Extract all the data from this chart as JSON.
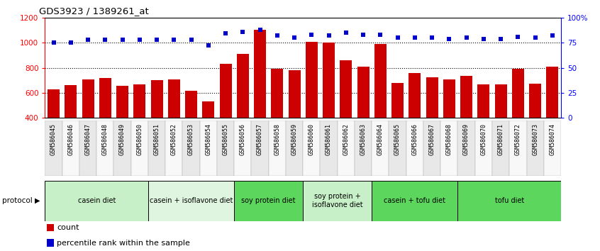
{
  "title": "GDS3923 / 1389261_at",
  "samples": [
    "GSM586045",
    "GSM586046",
    "GSM586047",
    "GSM586048",
    "GSM586049",
    "GSM586050",
    "GSM586051",
    "GSM586052",
    "GSM586053",
    "GSM586054",
    "GSM586055",
    "GSM586056",
    "GSM586057",
    "GSM586058",
    "GSM586059",
    "GSM586060",
    "GSM586061",
    "GSM586062",
    "GSM586063",
    "GSM586064",
    "GSM586065",
    "GSM586066",
    "GSM586067",
    "GSM586068",
    "GSM586069",
    "GSM586070",
    "GSM586071",
    "GSM586072",
    "GSM586073",
    "GSM586074"
  ],
  "counts": [
    630,
    660,
    710,
    720,
    655,
    668,
    700,
    710,
    615,
    530,
    830,
    910,
    1105,
    790,
    780,
    1005,
    1000,
    860,
    810,
    990,
    680,
    760,
    725,
    705,
    735,
    670,
    665,
    790,
    675,
    810
  ],
  "percentile_ranks": [
    75,
    75,
    78,
    78,
    78,
    78,
    78,
    78,
    78,
    72,
    84,
    86,
    88,
    82,
    80,
    83,
    82,
    85,
    83,
    83,
    80,
    80,
    80,
    79,
    80,
    79,
    79,
    81,
    80,
    82
  ],
  "groups": [
    {
      "label": "casein diet",
      "start": 0,
      "end": 6,
      "color": "#c8f0c8"
    },
    {
      "label": "casein + isoflavone diet",
      "start": 6,
      "end": 11,
      "color": "#dff5df"
    },
    {
      "label": "soy protein diet",
      "start": 11,
      "end": 15,
      "color": "#5cd65c"
    },
    {
      "label": "soy protein +\nisoflavone diet",
      "start": 15,
      "end": 19,
      "color": "#c8f0c8"
    },
    {
      "label": "casein + tofu diet",
      "start": 19,
      "end": 24,
      "color": "#5cd65c"
    },
    {
      "label": "tofu diet",
      "start": 24,
      "end": 30,
      "color": "#5cd65c"
    }
  ],
  "bar_color": "#cc0000",
  "dot_color": "#0000cc",
  "left_ylim": [
    400,
    1200
  ],
  "right_ylim": [
    0,
    100
  ],
  "left_yticks": [
    400,
    600,
    800,
    1000,
    1200
  ],
  "right_yticks": [
    0,
    25,
    50,
    75,
    100
  ],
  "right_yticklabels": [
    "0",
    "25",
    "50",
    "75",
    "100%"
  ],
  "grid_values": [
    600,
    800,
    1000
  ],
  "protocol_label": "protocol",
  "legend_count_label": "count",
  "legend_pct_label": "percentile rank within the sample"
}
